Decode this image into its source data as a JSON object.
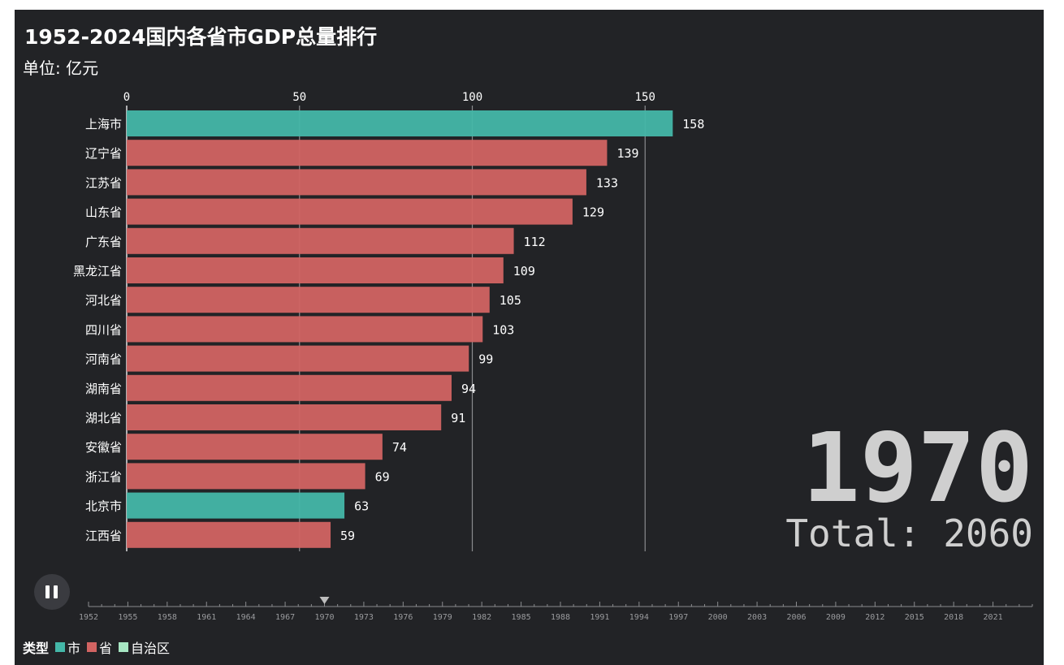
{
  "title": "1952-2024国内各省市GDP总量排行",
  "subtitle": "单位: 亿元",
  "year": "1970",
  "total_label": "Total: 2060",
  "legend": {
    "title": "类型",
    "items": [
      {
        "label": "市",
        "color": "#44b7a8"
      },
      {
        "label": "省",
        "color": "#d26462"
      },
      {
        "label": "自治区",
        "color": "#a7e6c3"
      }
    ]
  },
  "colors": {
    "city": "#44b7a8",
    "province": "#d26462",
    "autonomous": "#a7e6c3",
    "background": "#222326"
  },
  "timeline": {
    "labels": [
      "1952",
      "1955",
      "1958",
      "1961",
      "1964",
      "1967",
      "1970",
      "1973",
      "1976",
      "1979",
      "1982",
      "1985",
      "1988",
      "1991",
      "1994",
      "1997",
      "2000",
      "2003",
      "2006",
      "2009",
      "2012",
      "2015",
      "2018",
      "2021"
    ],
    "start": 1952,
    "end": 2024,
    "current": 1970
  },
  "chart_data": {
    "type": "bar",
    "orientation": "horizontal",
    "categories": [
      "上海市",
      "辽宁省",
      "江苏省",
      "山东省",
      "广东省",
      "黑龙江省",
      "河北省",
      "四川省",
      "河南省",
      "湖南省",
      "湖北省",
      "安徽省",
      "浙江省",
      "北京市",
      "江西省"
    ],
    "values": [
      158,
      139,
      133,
      129,
      112,
      109,
      105,
      103,
      99,
      94,
      91,
      74,
      69,
      63,
      59
    ],
    "types": [
      "市",
      "省",
      "省",
      "省",
      "省",
      "省",
      "省",
      "省",
      "省",
      "省",
      "省",
      "省",
      "省",
      "市",
      "省"
    ],
    "xticks": [
      0,
      50,
      100,
      150
    ],
    "xlim": [
      0,
      158
    ],
    "grid": true,
    "title": "1952-2024国内各省市GDP总量排行",
    "xlabel": "",
    "ylabel": ""
  }
}
